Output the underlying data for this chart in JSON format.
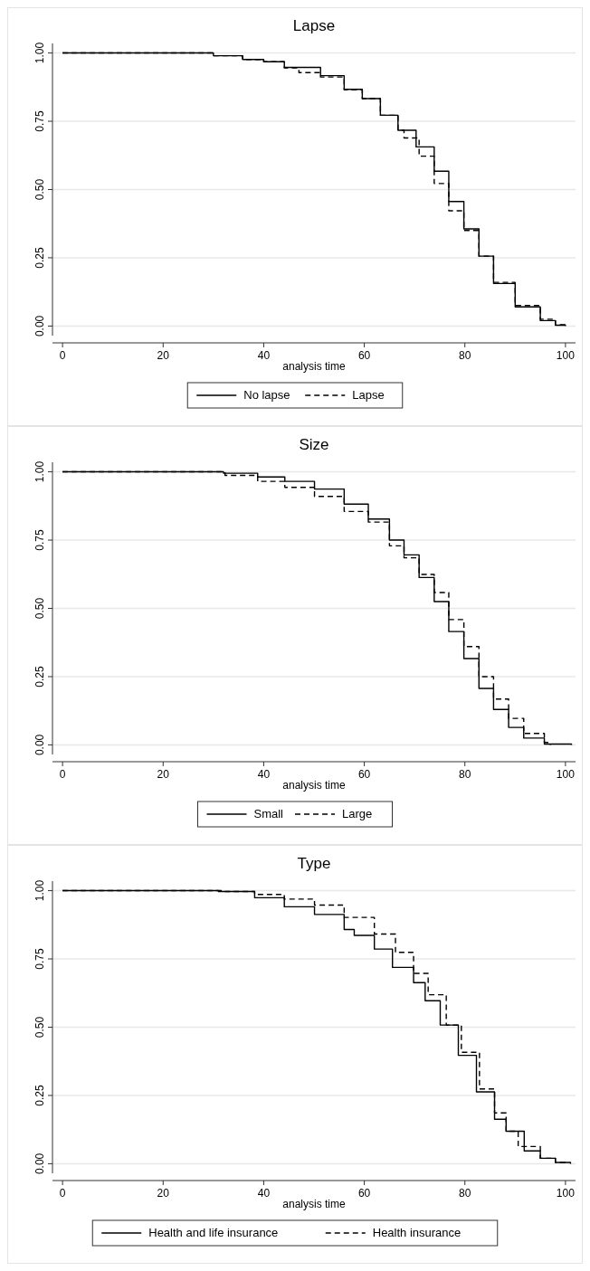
{
  "chart_data": [
    {
      "type": "step",
      "title": "Lapse",
      "xlabel": "analysis time",
      "xlim": [
        -2,
        102
      ],
      "ylim": [
        -0.035,
        1.035
      ],
      "xticks": [
        0,
        20,
        40,
        60,
        80,
        100
      ],
      "yticks": [
        {
          "value": 0,
          "label": "0.00"
        },
        {
          "value": 0.25,
          "label": "0.25"
        },
        {
          "value": 0.5,
          "label": "0.50"
        },
        {
          "value": 0.75,
          "label": "0.75"
        },
        {
          "value": 1,
          "label": "1.00"
        }
      ],
      "grid": "y",
      "legend": "bottom",
      "series": [
        {
          "name": "No lapse",
          "color": "#000000",
          "line_style": "solid",
          "x": [
            0,
            25.7,
            30,
            35.8,
            40,
            44.1,
            51.3,
            56,
            59.6,
            63.2,
            66.7,
            70.3,
            73.9,
            76.8,
            79.8,
            82.8,
            85.7,
            90,
            95,
            98,
            100
          ],
          "values": [
            1,
            1,
            0.99,
            0.976,
            0.968,
            0.947,
            0.917,
            0.867,
            0.833,
            0.772,
            0.717,
            0.656,
            0.567,
            0.456,
            0.356,
            0.256,
            0.156,
            0.07,
            0.02,
            0.003,
            0
          ]
        },
        {
          "name": "Lapse",
          "color": "#000000",
          "line_style": "dashed",
          "x": [
            0,
            25.7,
            30,
            35.8,
            40,
            44.1,
            47,
            51.3,
            56,
            59.6,
            63.2,
            66.7,
            67.9,
            70.9,
            73.9,
            76.8,
            79.8,
            82.8,
            85.7,
            90,
            95,
            98,
            100
          ],
          "values": [
            1,
            1,
            0.99,
            0.976,
            0.968,
            0.945,
            0.928,
            0.912,
            0.865,
            0.833,
            0.772,
            0.717,
            0.689,
            0.622,
            0.522,
            0.422,
            0.35,
            0.256,
            0.16,
            0.075,
            0.025,
            0.005,
            0
          ]
        }
      ]
    },
    {
      "type": "step",
      "title": "Size",
      "xlabel": "analysis time",
      "xlim": [
        -2,
        102
      ],
      "ylim": [
        -0.035,
        1.035
      ],
      "xticks": [
        0,
        20,
        40,
        60,
        80,
        100
      ],
      "yticks": [
        {
          "value": 0,
          "label": "0.00"
        },
        {
          "value": 0.25,
          "label": "0.25"
        },
        {
          "value": 0.5,
          "label": "0.50"
        },
        {
          "value": 0.75,
          "label": "0.75"
        },
        {
          "value": 1,
          "label": "1.00"
        }
      ],
      "grid": "y",
      "legend": "bottom",
      "series": [
        {
          "name": "Small",
          "color": "#000000",
          "line_style": "solid",
          "x": [
            0,
            25,
            32,
            38.8,
            44.2,
            50.1,
            56,
            60.8,
            65,
            67.9,
            70.9,
            73.9,
            76.8,
            79.8,
            82.8,
            85.7,
            88.7,
            91.7,
            95.8,
            101.2
          ],
          "values": [
            1,
            1,
            0.995,
            0.981,
            0.965,
            0.937,
            0.882,
            0.827,
            0.75,
            0.696,
            0.613,
            0.525,
            0.415,
            0.316,
            0.207,
            0.13,
            0.064,
            0.025,
            0.003,
            0
          ]
        },
        {
          "name": "Large",
          "color": "#000000",
          "line_style": "dashed",
          "x": [
            0,
            25,
            32.3,
            38.8,
            44.2,
            50.1,
            56,
            60.8,
            65,
            67.9,
            70.9,
            73.9,
            76.8,
            79.8,
            82.8,
            85.7,
            88.7,
            91.7,
            95.8,
            97
          ],
          "values": [
            1,
            1,
            0.987,
            0.965,
            0.943,
            0.91,
            0.855,
            0.816,
            0.729,
            0.685,
            0.624,
            0.558,
            0.459,
            0.36,
            0.25,
            0.168,
            0.097,
            0.042,
            0.009,
            0
          ]
        }
      ]
    },
    {
      "type": "step",
      "title": "Type",
      "xlabel": "analysis time",
      "xlim": [
        -2,
        102
      ],
      "ylim": [
        -0.035,
        1.035
      ],
      "xticks": [
        0,
        20,
        40,
        60,
        80,
        100
      ],
      "yticks": [
        {
          "value": 0,
          "label": "0.00"
        },
        {
          "value": 0.25,
          "label": "0.25"
        },
        {
          "value": 0.5,
          "label": "0.50"
        },
        {
          "value": 0.75,
          "label": "0.75"
        },
        {
          "value": 1,
          "label": "1.00"
        }
      ],
      "grid": "y",
      "legend": "bottom",
      "series": [
        {
          "name": "Health and life insurance",
          "color": "#000000",
          "line_style": "solid",
          "x": [
            0,
            24,
            31,
            38.2,
            44.1,
            50.1,
            56,
            58,
            62,
            65.6,
            69.8,
            72.1,
            75.1,
            78.7,
            82.3,
            85.9,
            88.2,
            91.8,
            95,
            98,
            101
          ],
          "values": [
            1,
            1,
            0.997,
            0.974,
            0.941,
            0.913,
            0.858,
            0.836,
            0.786,
            0.719,
            0.663,
            0.597,
            0.508,
            0.397,
            0.263,
            0.163,
            0.119,
            0.047,
            0.02,
            0.005,
            0
          ]
        },
        {
          "name": "Health insurance",
          "color": "#000000",
          "line_style": "dashed",
          "x": [
            0,
            24,
            32.3,
            38.2,
            44.1,
            50.1,
            56,
            62,
            66.2,
            69.8,
            72.7,
            76.3,
            79.3,
            82.9,
            85.9,
            88.2,
            90.6,
            95,
            98,
            100
          ],
          "values": [
            1,
            1,
            0.997,
            0.986,
            0.969,
            0.947,
            0.902,
            0.841,
            0.774,
            0.697,
            0.619,
            0.508,
            0.408,
            0.274,
            0.186,
            0.119,
            0.063,
            0.02,
            0.005,
            0
          ]
        }
      ]
    }
  ]
}
